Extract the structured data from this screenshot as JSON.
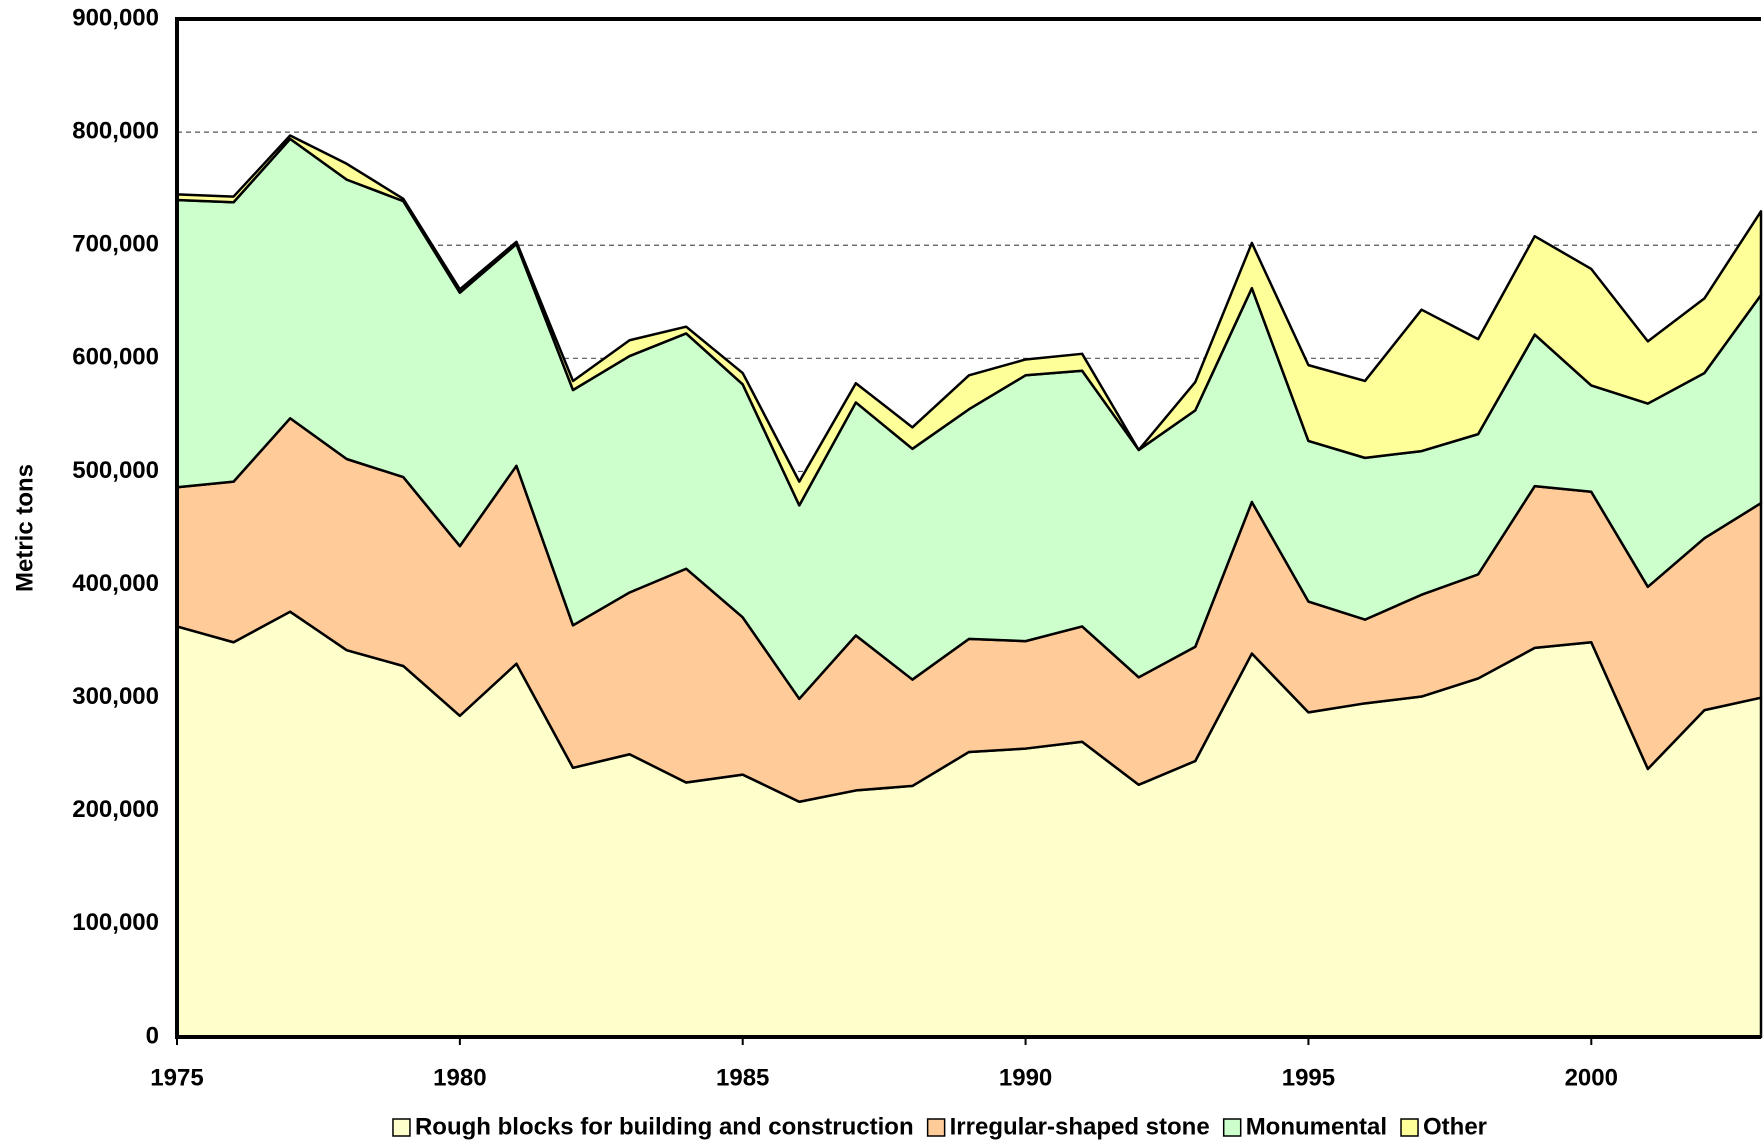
{
  "chart_data": {
    "type": "stacked_area",
    "y_axis_label": "Metric tons",
    "x": [
      1975,
      1976,
      1977,
      1978,
      1979,
      1980,
      1981,
      1982,
      1983,
      1984,
      1985,
      1986,
      1987,
      1988,
      1989,
      1990,
      1991,
      1992,
      1993,
      1994,
      1995,
      1996,
      1997,
      1998,
      1999,
      2000,
      2001,
      2002,
      2003
    ],
    "xlim": [
      1975,
      2003
    ],
    "xticks": [
      1975,
      1980,
      1985,
      1990,
      1995,
      2000
    ],
    "ylim": [
      0,
      900000
    ],
    "yticks": [
      0,
      {
        "value": 100000,
        "label": "100,000"
      },
      {
        "value": 200000,
        "label": "200,000"
      },
      {
        "value": 300000,
        "label": "300,000"
      },
      {
        "value": 400000,
        "label": "400,000"
      },
      {
        "value": 500000,
        "label": "500,000"
      },
      {
        "value": 600000,
        "label": "600,000"
      },
      {
        "value": 700000,
        "label": "700,000"
      },
      {
        "value": 800000,
        "label": "800,000"
      },
      {
        "value": 900000,
        "label": "900,000"
      }
    ],
    "grid": true,
    "legend": "bottom",
    "series": [
      {
        "name": "Rough blocks for building and construction",
        "color": "#ffffcc",
        "values": [
          363000,
          349000,
          376000,
          342000,
          328000,
          284000,
          330000,
          238000,
          250000,
          225000,
          232000,
          208000,
          218000,
          222000,
          252000,
          255000,
          261000,
          223000,
          244000,
          339000,
          287000,
          295000,
          301000,
          317000,
          344000,
          349000,
          237000,
          289000,
          300000
        ]
      },
      {
        "name": "Irregular-shaped stone",
        "color": "#ffcc99",
        "values": [
          123000,
          142000,
          171000,
          169000,
          167000,
          150000,
          175000,
          126000,
          143000,
          189000,
          139000,
          91000,
          137000,
          94000,
          100000,
          95000,
          102000,
          95000,
          101000,
          134000,
          98000,
          74000,
          90000,
          92000,
          143000,
          133000,
          161000,
          152000,
          172000
        ]
      },
      {
        "name": "Monumental",
        "color": "#ccffcc",
        "values": [
          254000,
          247000,
          247000,
          247000,
          244000,
          224000,
          196000,
          208000,
          209000,
          208000,
          206000,
          171000,
          206000,
          204000,
          203000,
          235000,
          226000,
          201000,
          209000,
          189000,
          142000,
          143000,
          127000,
          124000,
          134000,
          94000,
          162000,
          146000,
          184000
        ]
      },
      {
        "name": "Other",
        "color": "#ffff99",
        "values": [
          5000,
          5000,
          3000,
          14000,
          2000,
          3000,
          2000,
          8000,
          14000,
          6000,
          10000,
          21000,
          17000,
          19000,
          30000,
          14000,
          15000,
          0,
          25000,
          40000,
          67000,
          68000,
          125000,
          84000,
          87000,
          103000,
          55000,
          66000,
          74000
        ]
      }
    ]
  }
}
